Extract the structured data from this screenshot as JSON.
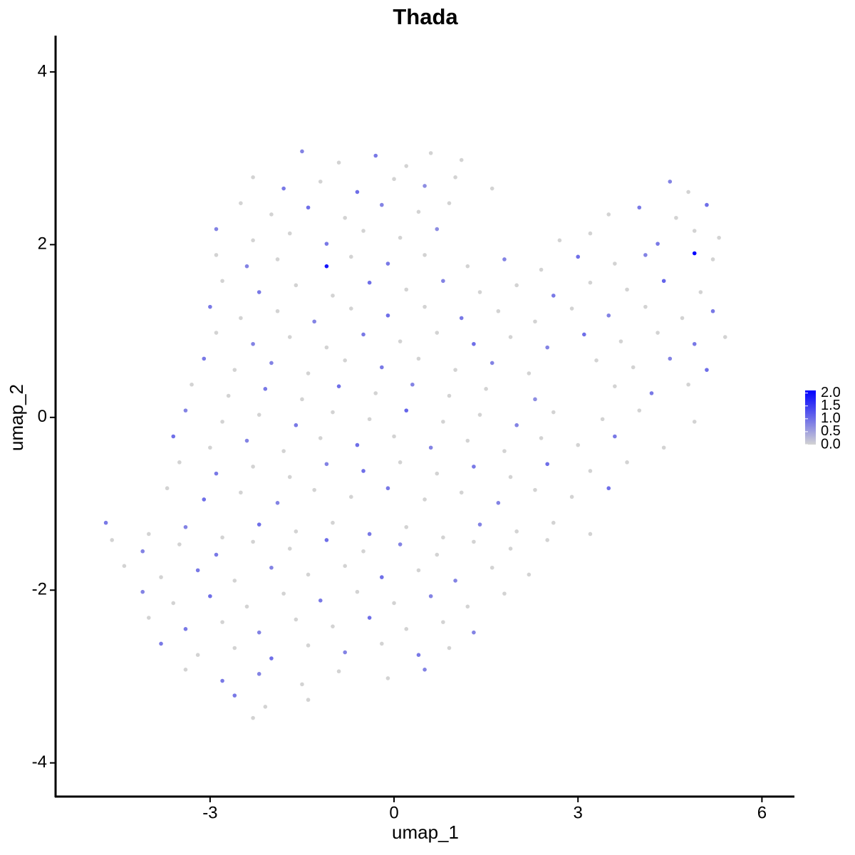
{
  "chart_data": {
    "type": "scatter",
    "title": "Thada",
    "x_label": "umap_1",
    "y_label": "umap_2",
    "xlim": [
      -5.52,
      6.53
    ],
    "ylim": [
      -4.39,
      4.42
    ],
    "xticks": [
      -3,
      0,
      3,
      6
    ],
    "yticks": [
      -4,
      -2,
      0,
      2,
      4
    ],
    "x": [
      -1.5,
      -0.9,
      -0.3,
      0.2,
      0.6,
      1.1,
      -2.3,
      -1.8,
      -1.2,
      -0.6,
      0,
      0.5,
      1.0,
      1.6,
      4.5,
      4.8,
      -2.5,
      -2.0,
      -1.4,
      -0.8,
      -0.2,
      0.4,
      0.9,
      3.5,
      4.0,
      4.6,
      5.1,
      -2.9,
      -2.3,
      -1.7,
      -1.1,
      -0.5,
      0.1,
      0.7,
      2.7,
      3.2,
      4.3,
      4.9,
      5.3,
      -2.9,
      -2.4,
      -1.9,
      -1.1,
      -0.7,
      -0.1,
      0.5,
      1.2,
      1.8,
      2.4,
      3.0,
      3.6,
      4.1,
      4.9,
      5.2,
      -2.8,
      -2.2,
      -1.6,
      -1.0,
      -0.4,
      0.2,
      0.8,
      1.4,
      2.0,
      2.6,
      3.2,
      3.8,
      4.4,
      5.0,
      -3.0,
      -2.5,
      -1.9,
      -1.3,
      -0.7,
      -0.1,
      0.5,
      1.1,
      1.7,
      2.3,
      2.9,
      3.5,
      4.1,
      4.7,
      5.2,
      -2.9,
      -2.3,
      -1.7,
      -1.1,
      -0.5,
      0.1,
      0.7,
      1.3,
      1.9,
      2.5,
      3.1,
      3.7,
      4.3,
      4.9,
      5.4,
      -3.1,
      -2.6,
      -2.0,
      -1.4,
      -0.8,
      -0.2,
      0.4,
      1.0,
      1.6,
      2.2,
      3.3,
      3.9,
      4.5,
      5.1,
      -3.3,
      -2.7,
      -2.1,
      -1.5,
      -0.9,
      -0.3,
      0.3,
      0.9,
      1.5,
      2.3,
      3.6,
      4.2,
      4.8,
      -3.4,
      -2.8,
      -2.2,
      -1.6,
      -1.0,
      -0.4,
      0.2,
      0.8,
      1.4,
      2.0,
      2.6,
      3.4,
      4.0,
      4.9,
      -3.6,
      -3.0,
      -2.4,
      -1.8,
      -1.2,
      -0.6,
      0.0,
      0.6,
      1.2,
      1.8,
      2.4,
      3.0,
      3.6,
      4.4,
      -3.5,
      -2.9,
      -2.3,
      -1.7,
      -1.1,
      -0.5,
      0.1,
      0.7,
      1.3,
      1.9,
      2.5,
      3.2,
      3.8,
      -3.7,
      -3.1,
      -2.5,
      -1.9,
      -1.3,
      -0.7,
      -0.1,
      0.5,
      1.1,
      1.7,
      2.3,
      2.9,
      3.5,
      -4.7,
      -4.0,
      -3.4,
      -2.8,
      -2.2,
      -1.6,
      -1.0,
      -0.4,
      0.2,
      0.8,
      1.4,
      2.0,
      2.6,
      3.2,
      -4.6,
      -4.1,
      -3.5,
      -2.9,
      -2.3,
      -1.7,
      -1.1,
      -0.5,
      0.1,
      0.7,
      1.3,
      1.9,
      2.5,
      -4.4,
      -3.8,
      -3.2,
      -2.6,
      -2.0,
      -1.4,
      -0.8,
      -0.2,
      0.4,
      1.0,
      1.6,
      2.2,
      -4.1,
      -3.6,
      -3.0,
      -2.4,
      -1.8,
      -1.2,
      -0.6,
      0.0,
      0.6,
      1.2,
      1.8,
      -4.0,
      -3.4,
      -2.8,
      -2.2,
      -1.6,
      -1.0,
      -0.4,
      0.2,
      0.8,
      1.3,
      -3.8,
      -3.2,
      -2.6,
      -2.0,
      -1.4,
      -0.8,
      -0.2,
      0.4,
      0.9,
      -3.4,
      -2.8,
      -2.2,
      -1.5,
      -0.9,
      -0.1,
      0.5,
      -2.6,
      -2.1,
      -1.4,
      -2.3
    ],
    "y": [
      3.08,
      2.95,
      3.03,
      2.91,
      3.06,
      2.98,
      2.78,
      2.65,
      2.73,
      2.61,
      2.76,
      2.68,
      2.78,
      2.65,
      2.73,
      2.61,
      2.48,
      2.35,
      2.43,
      2.31,
      2.46,
      2.38,
      2.48,
      2.35,
      2.43,
      2.31,
      2.46,
      2.18,
      2.05,
      2.13,
      2.01,
      2.16,
      2.08,
      2.18,
      2.05,
      2.13,
      2.01,
      2.16,
      2.08,
      1.88,
      1.75,
      1.83,
      1.75,
      1.86,
      1.78,
      1.88,
      1.75,
      1.83,
      1.71,
      1.86,
      1.78,
      1.88,
      1.9,
      1.83,
      1.58,
      1.45,
      1.53,
      1.41,
      1.56,
      1.48,
      1.58,
      1.45,
      1.53,
      1.41,
      1.56,
      1.48,
      1.58,
      1.45,
      1.28,
      1.15,
      1.23,
      1.11,
      1.26,
      1.18,
      1.28,
      1.15,
      1.23,
      1.11,
      1.26,
      1.18,
      1.28,
      1.15,
      1.23,
      0.98,
      0.85,
      0.93,
      0.81,
      0.96,
      0.88,
      0.98,
      0.85,
      0.93,
      0.81,
      0.96,
      0.88,
      0.98,
      0.85,
      0.93,
      0.68,
      0.55,
      0.63,
      0.51,
      0.66,
      0.58,
      0.68,
      0.55,
      0.63,
      0.51,
      0.66,
      0.58,
      0.68,
      0.55,
      0.38,
      0.25,
      0.33,
      0.21,
      0.36,
      0.28,
      0.38,
      0.25,
      0.33,
      0.21,
      0.36,
      0.28,
      0.38,
      0.08,
      -0.05,
      0.03,
      -0.09,
      0.06,
      -0.02,
      0.08,
      -0.05,
      0.03,
      -0.09,
      0.06,
      -0.02,
      0.08,
      -0.05,
      -0.22,
      -0.35,
      -0.27,
      -0.39,
      -0.24,
      -0.32,
      -0.22,
      -0.35,
      -0.27,
      -0.39,
      -0.24,
      -0.32,
      -0.22,
      -0.35,
      -0.52,
      -0.65,
      -0.57,
      -0.69,
      -0.54,
      -0.62,
      -0.52,
      -0.65,
      -0.57,
      -0.69,
      -0.54,
      -0.62,
      -0.52,
      -0.82,
      -0.95,
      -0.87,
      -0.99,
      -0.84,
      -0.92,
      -0.82,
      -0.95,
      -0.87,
      -0.99,
      -0.84,
      -0.92,
      -0.82,
      -1.22,
      -1.35,
      -1.27,
      -1.39,
      -1.24,
      -1.32,
      -1.22,
      -1.35,
      -1.27,
      -1.39,
      -1.24,
      -1.32,
      -1.22,
      -1.35,
      -1.42,
      -1.55,
      -1.47,
      -1.59,
      -1.44,
      -1.52,
      -1.42,
      -1.55,
      -1.47,
      -1.59,
      -1.44,
      -1.52,
      -1.42,
      -1.72,
      -1.85,
      -1.77,
      -1.89,
      -1.74,
      -1.82,
      -1.72,
      -1.85,
      -1.77,
      -1.89,
      -1.74,
      -1.82,
      -2.02,
      -2.15,
      -2.07,
      -2.19,
      -2.04,
      -2.12,
      -2.02,
      -2.15,
      -2.07,
      -2.19,
      -2.04,
      -2.32,
      -2.45,
      -2.37,
      -2.49,
      -2.34,
      -2.42,
      -2.32,
      -2.45,
      -2.37,
      -2.49,
      -2.62,
      -2.75,
      -2.67,
      -2.79,
      -2.64,
      -2.72,
      -2.62,
      -2.75,
      -2.67,
      -2.92,
      -3.05,
      -2.97,
      -3.09,
      -2.94,
      -3.02,
      -2.92,
      -3.22,
      -3.35,
      -3.27,
      -3.48
    ],
    "expression": [
      0.8,
      0,
      0.9,
      0,
      0,
      0,
      0,
      0.9,
      0,
      1.0,
      0,
      0.7,
      0,
      0,
      0.8,
      0,
      0,
      0,
      1.0,
      0,
      0.8,
      0,
      0,
      0,
      0.9,
      0,
      1.0,
      0.8,
      0,
      0,
      0.9,
      0,
      0,
      0.7,
      0,
      0,
      0.9,
      0,
      0,
      0,
      0.8,
      0,
      1.9,
      0,
      0.9,
      0,
      0,
      0.8,
      0,
      1.0,
      0,
      0.8,
      2.1,
      0,
      0,
      0.9,
      0,
      0,
      1.0,
      0,
      0.8,
      0,
      0,
      0.9,
      0,
      0,
      1.1,
      0,
      0.9,
      0,
      0,
      0.8,
      0,
      1.0,
      0,
      0.9,
      0,
      0,
      0,
      0.8,
      0,
      0,
      0.9,
      0,
      0.8,
      0,
      0,
      0.9,
      0,
      0,
      1.0,
      0,
      0.8,
      1.0,
      0,
      0,
      0.9,
      0,
      0.9,
      0,
      0.8,
      0,
      0,
      0.9,
      0,
      0,
      0.8,
      0,
      0,
      0,
      0.8,
      1.0,
      0,
      0,
      0.9,
      0,
      1.0,
      0,
      0.8,
      0,
      0,
      0.7,
      0,
      0.9,
      0,
      0.8,
      0,
      0,
      0.9,
      0,
      0,
      1.1,
      0,
      0,
      0.8,
      0,
      0,
      0,
      0,
      1.0,
      0,
      0.8,
      0,
      0,
      1.0,
      0,
      0.8,
      0,
      0,
      0,
      0,
      0.9,
      0,
      0,
      0.9,
      0,
      0,
      0.8,
      1.0,
      0,
      0,
      0.9,
      0,
      1.0,
      0,
      0,
      0,
      1.0,
      0,
      0.8,
      0,
      0,
      0.9,
      0,
      0,
      0.8,
      0,
      0,
      1.0,
      0.9,
      0,
      0.8,
      0,
      1.0,
      0,
      0,
      0.9,
      0,
      0,
      0.8,
      0,
      0,
      0,
      0,
      0.8,
      0,
      0.9,
      0,
      0,
      1.0,
      0,
      0.8,
      0,
      0,
      0,
      0,
      0,
      0,
      0.9,
      0,
      0.8,
      0,
      0,
      1.0,
      0,
      0.8,
      0,
      0,
      0.8,
      0,
      1.0,
      0,
      0,
      0.9,
      0,
      0,
      0.8,
      0,
      0,
      0,
      0.9,
      0,
      0.8,
      0,
      0,
      1.0,
      0,
      0,
      0.8,
      0.9,
      0,
      0,
      1.0,
      0,
      0.8,
      0,
      0.9,
      0,
      0,
      0.9,
      0.8,
      0,
      0,
      0,
      0.8,
      0.9,
      0,
      0,
      0
    ],
    "colorbar": {
      "lim": [
        0,
        2.1
      ],
      "colors": [
        "#d3d3d3",
        "#0000ff"
      ],
      "ticks": [
        {
          "value": 0,
          "label": "0.0"
        },
        0.5,
        {
          "value": 1,
          "label": "1.0"
        },
        1.5,
        {
          "value": 2,
          "label": "2.0"
        }
      ]
    }
  }
}
